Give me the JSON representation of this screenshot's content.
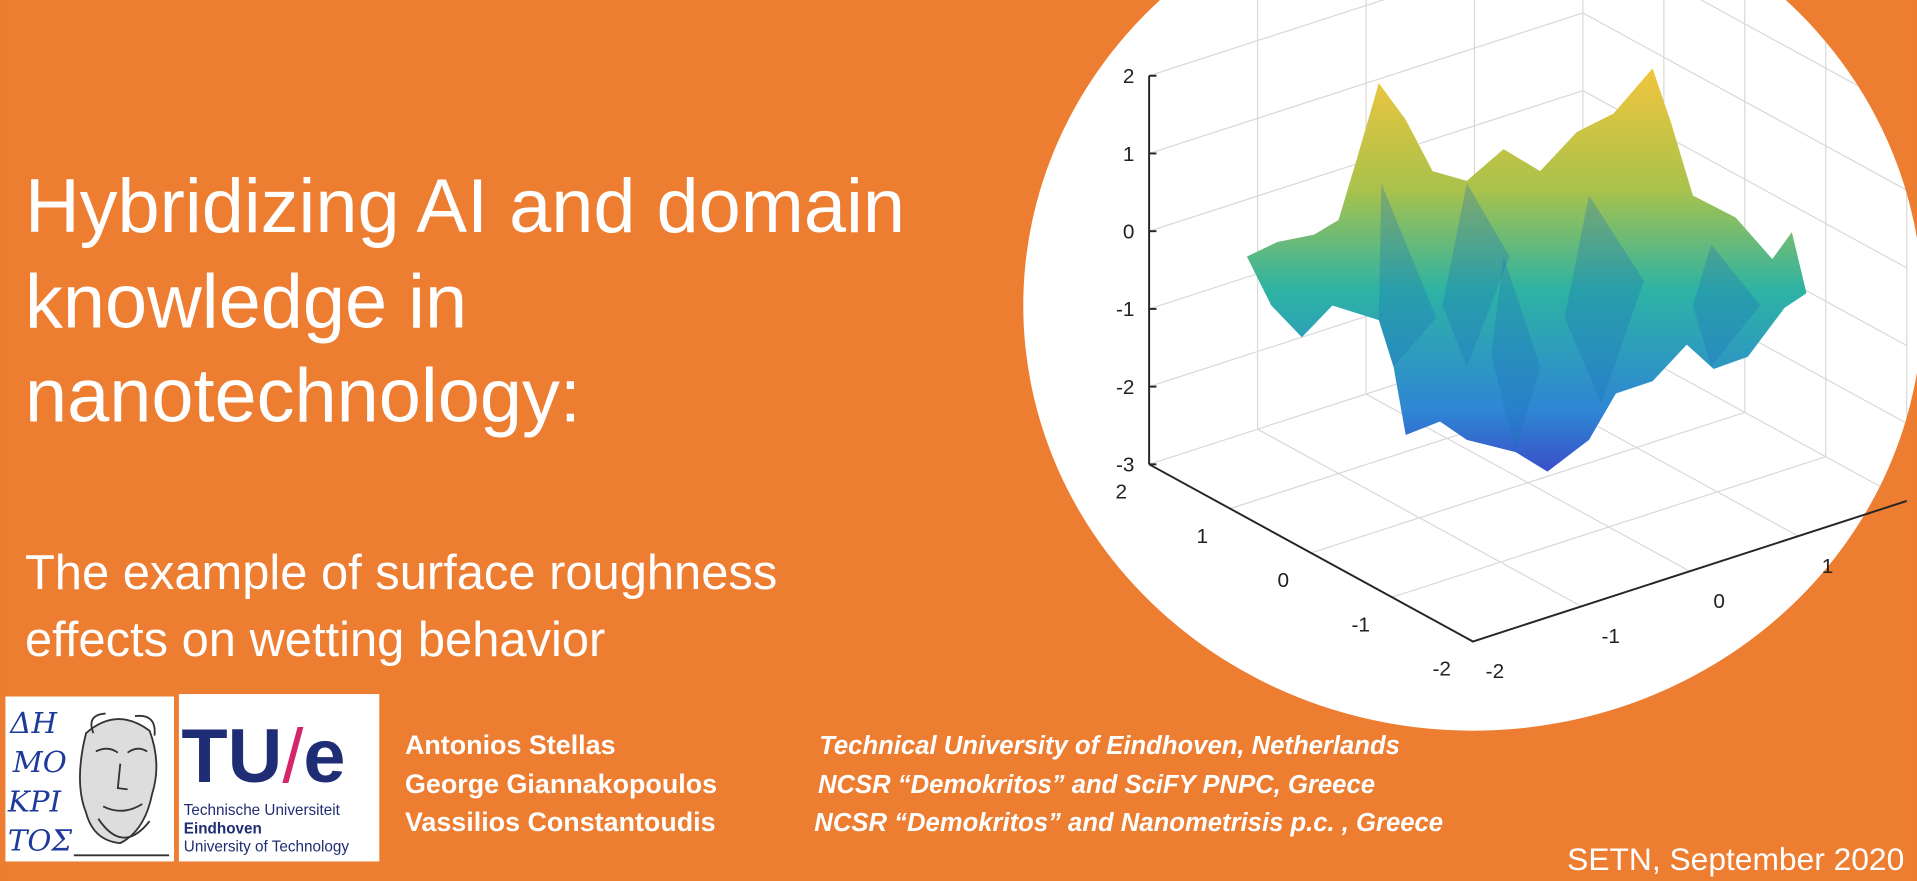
{
  "slide": {
    "title_lines": [
      "Hybridizing AI and domain",
      "knowledge in",
      "nanotechnology:"
    ],
    "subtitle_lines": [
      "The example of surface roughness",
      "effects on wetting behavior"
    ],
    "authors": [
      {
        "name": "Antonios Stellas",
        "affiliation": "Technical University of Eindhoven, Netherlands"
      },
      {
        "name": "George Giannakopoulos",
        "affiliation": "NCSR “Demokritos” and SciFY PNPC, Greece"
      },
      {
        "name": "Vassilios Constantoudis",
        "affiliation": "NCSR “Demokritos” and Nanometrisis p.c. , Greece"
      }
    ],
    "footer": "SETN, September 2020",
    "logos": {
      "demokritos_lines": [
        "ΔΗ",
        "ΜΟ",
        "ΚΡΙ",
        "ΤΟΣ"
      ],
      "tue_mark": [
        "TU",
        "/",
        "e"
      ],
      "tue_lines": [
        "Technische Universiteit",
        "Eindhoven",
        "University of Technology"
      ]
    },
    "surface_plot": {
      "zticks": [
        2,
        1,
        0,
        -1,
        -2,
        -3
      ],
      "xticks": [
        2,
        1,
        0,
        -1,
        -2
      ],
      "yticks": [
        -2,
        -1,
        0,
        1
      ]
    }
  }
}
